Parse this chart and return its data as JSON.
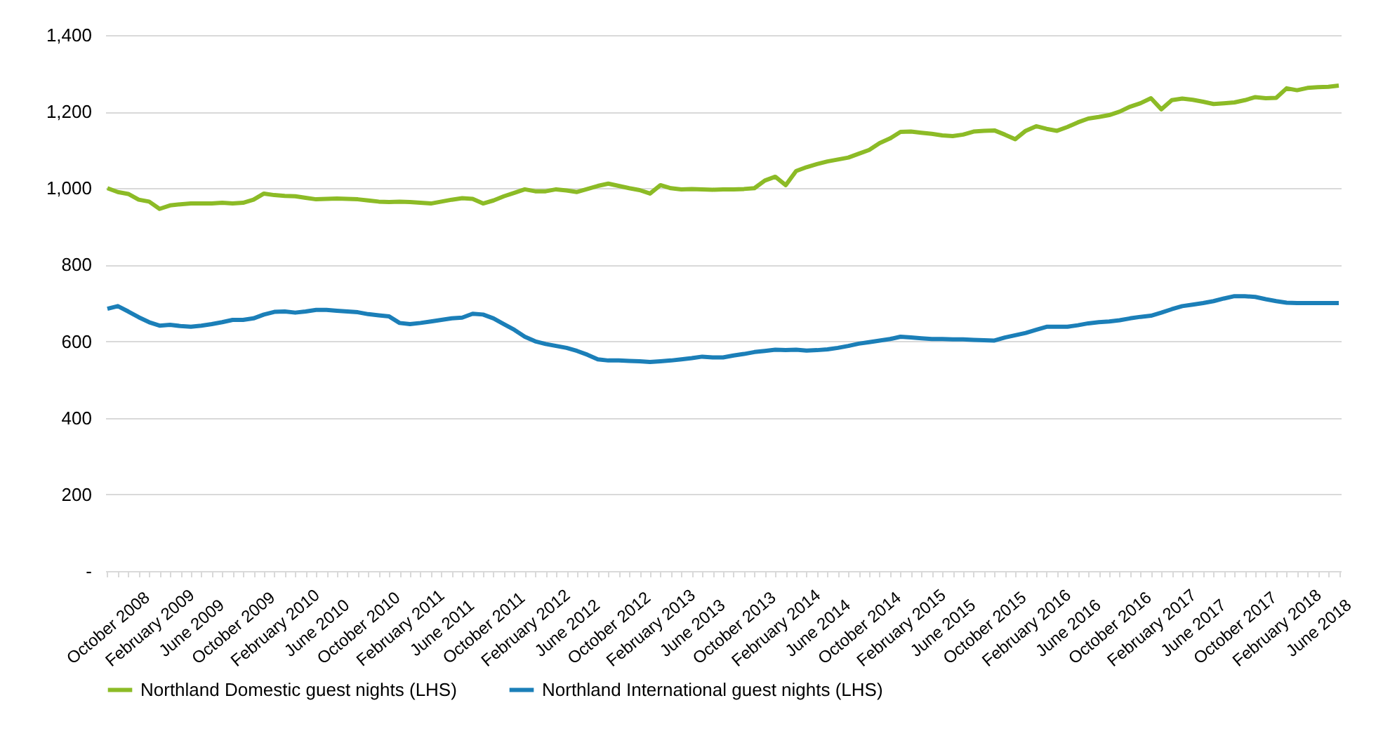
{
  "chart_data": {
    "type": "line",
    "categories": [
      "October 2008",
      null,
      null,
      null,
      "February 2009",
      null,
      null,
      null,
      "June 2009",
      null,
      null,
      null,
      "October 2009",
      null,
      null,
      null,
      "February 2010",
      null,
      null,
      null,
      "June 2010",
      null,
      null,
      null,
      "October 2010",
      null,
      null,
      null,
      "February 2011",
      null,
      null,
      null,
      "June 2011",
      null,
      null,
      null,
      "October 2011",
      null,
      null,
      null,
      "February 2012",
      null,
      null,
      null,
      "June 2012",
      null,
      null,
      null,
      "October 2012",
      null,
      null,
      null,
      "February 2013",
      null,
      null,
      null,
      "June 2013",
      null,
      null,
      null,
      "October 2013",
      null,
      null,
      null,
      "February 2014",
      null,
      null,
      null,
      "June 2014",
      null,
      null,
      null,
      "October 2014",
      null,
      null,
      null,
      "February 2015",
      null,
      null,
      null,
      "June 2015",
      null,
      null,
      null,
      "October 2015",
      null,
      null,
      null,
      "February 2016",
      null,
      null,
      null,
      "June 2016",
      null,
      null,
      null,
      "October 2016",
      null,
      null,
      null,
      "February 2017",
      null,
      null,
      null,
      "June 2017",
      null,
      null,
      null,
      "October 2017",
      null,
      null,
      null,
      "February 2018",
      null,
      null,
      null,
      "June 2018",
      null,
      null
    ],
    "series": [
      {
        "name": "Northland Domestic guest nights (LHS)",
        "color": "#8cbb26",
        "values": [
          1000,
          990,
          985,
          970,
          965,
          946,
          955,
          958,
          960,
          960,
          960,
          962,
          960,
          962,
          970,
          986,
          982,
          980,
          979,
          975,
          971,
          972,
          973,
          972,
          971,
          968,
          965,
          964,
          965,
          964,
          962,
          960,
          965,
          970,
          974,
          972,
          960,
          968,
          979,
          988,
          997,
          992,
          992,
          997,
          994,
          990,
          998,
          1006,
          1012,
          1006,
          1000,
          995,
          986,
          1008,
          1000,
          997,
          998,
          997,
          996,
          997,
          997,
          998,
          1000,
          1020,
          1030,
          1008,
          1045,
          1055,
          1063,
          1070,
          1075,
          1080,
          1090,
          1100,
          1118,
          1130,
          1147,
          1148,
          1145,
          1142,
          1138,
          1136,
          1140,
          1148,
          1150,
          1151,
          1140,
          1128,
          1150,
          1162,
          1155,
          1150,
          1160,
          1172,
          1182,
          1186,
          1191,
          1200,
          1213,
          1222,
          1235,
          1206,
          1230,
          1234,
          1231,
          1226,
          1220,
          1222,
          1224,
          1230,
          1238,
          1235,
          1236,
          1261,
          1256,
          1262,
          1264,
          1265,
          1268
        ]
      },
      {
        "name": "Northland International guest nights (LHS)",
        "color": "#1b7fb8",
        "values": [
          685,
          692,
          678,
          663,
          650,
          641,
          643,
          640,
          638,
          641,
          645,
          650,
          656,
          656,
          660,
          670,
          677,
          678,
          675,
          678,
          682,
          682,
          680,
          678,
          676,
          671,
          668,
          665,
          648,
          645,
          648,
          652,
          656,
          660,
          662,
          672,
          670,
          660,
          645,
          630,
          612,
          600,
          593,
          588,
          583,
          575,
          565,
          553,
          550,
          550,
          549,
          548,
          546,
          548,
          550,
          553,
          556,
          560,
          558,
          558,
          563,
          567,
          572,
          575,
          578,
          577,
          578,
          576,
          577,
          579,
          583,
          588,
          594,
          598,
          602,
          606,
          612,
          610,
          608,
          606,
          606,
          605,
          605,
          604,
          603,
          602,
          610,
          616,
          622,
          630,
          638,
          638,
          638,
          642,
          647,
          650,
          652,
          655,
          660,
          664,
          667,
          675,
          684,
          692,
          696,
          700,
          705,
          712,
          718,
          718,
          716,
          710,
          705,
          701,
          700,
          700,
          700,
          700,
          700
        ]
      }
    ],
    "ylim": [
      0,
      1400
    ],
    "yticks": [
      {
        "value": 0,
        "label": "-"
      },
      200,
      400,
      600,
      800,
      {
        "value": 1000,
        "label": "1,000"
      },
      {
        "value": 1200,
        "label": "1,200"
      },
      {
        "value": 1400,
        "label": "1,400"
      }
    ],
    "grid": "y",
    "legend": "bottom",
    "line_style": "solid",
    "marker": "none"
  }
}
